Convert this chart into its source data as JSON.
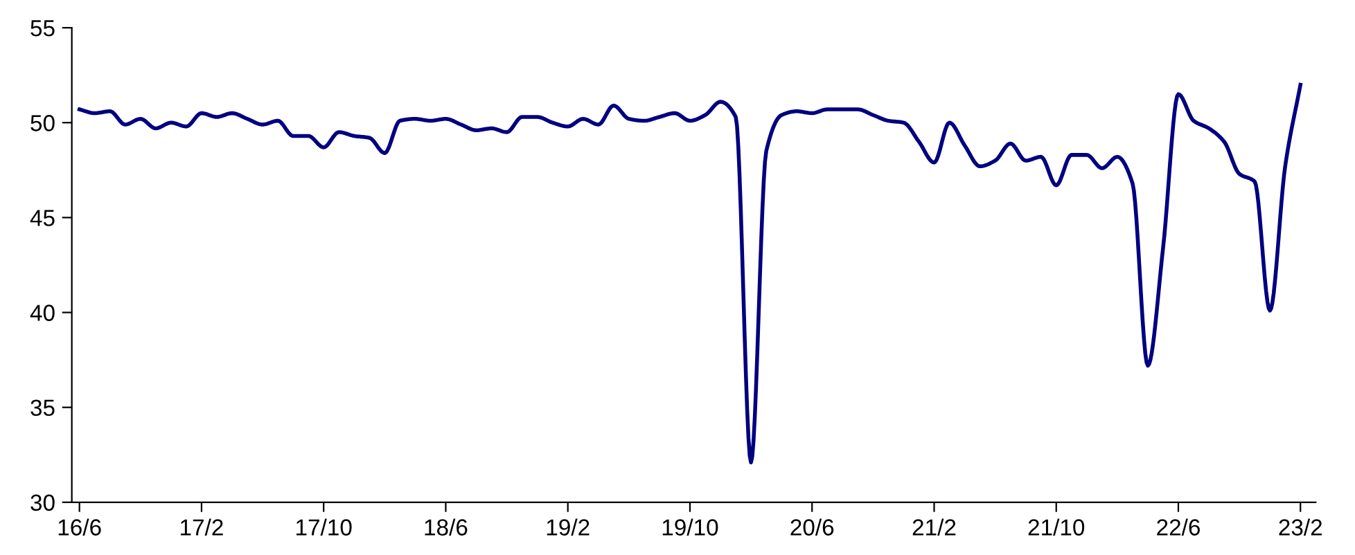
{
  "chart_data": {
    "type": "line",
    "categories": [
      "16/6",
      null,
      null,
      null,
      null,
      null,
      null,
      null,
      "17/2",
      null,
      null,
      null,
      null,
      null,
      null,
      null,
      "17/10",
      null,
      null,
      null,
      null,
      null,
      null,
      null,
      "18/6",
      null,
      null,
      null,
      null,
      null,
      null,
      null,
      "19/2",
      null,
      null,
      null,
      null,
      null,
      null,
      null,
      "19/10",
      null,
      null,
      null,
      null,
      null,
      null,
      null,
      "20/6",
      null,
      null,
      null,
      null,
      null,
      null,
      null,
      "21/2",
      null,
      null,
      null,
      null,
      null,
      null,
      null,
      "21/10",
      null,
      null,
      null,
      null,
      null,
      null,
      null,
      "22/6",
      null,
      null,
      null,
      null,
      null,
      null,
      null,
      "23/2"
    ],
    "series": [
      {
        "color": "#000080",
        "values": [
          50.7,
          50.5,
          50.6,
          49.9,
          50.2,
          49.7,
          50.0,
          49.8,
          50.5,
          50.3,
          50.5,
          50.2,
          49.9,
          50.1,
          49.3,
          49.3,
          48.7,
          49.5,
          49.3,
          49.2,
          48.4,
          50.1,
          50.2,
          50.1,
          50.2,
          49.9,
          49.6,
          49.7,
          49.5,
          50.3,
          50.3,
          50.0,
          49.8,
          50.2,
          49.9,
          50.9,
          50.2,
          50.1,
          50.3,
          50.5,
          50.1,
          50.4,
          51.1,
          50.3,
          32.1,
          48.5,
          50.4,
          50.6,
          50.5,
          50.7,
          50.7,
          50.7,
          50.4,
          50.1,
          50.0,
          49.0,
          47.9,
          50.0,
          48.8,
          47.7,
          48.0,
          48.9,
          48.0,
          48.2,
          46.7,
          48.3,
          48.3,
          47.6,
          48.2,
          46.8,
          37.2,
          43.4,
          51.5,
          50.1,
          49.7,
          49.0,
          47.3,
          46.9,
          40.1,
          47.7,
          52.0
        ]
      }
    ],
    "ylim": [
      30,
      55
    ],
    "yticks": [
      30,
      35,
      40,
      45,
      50,
      55
    ],
    "grid": false,
    "legend": false,
    "marker": "none",
    "line_style": "solid"
  }
}
